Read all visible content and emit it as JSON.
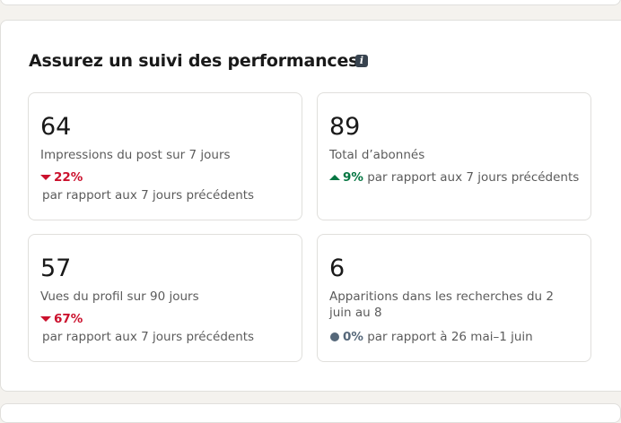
{
  "header": {
    "title": "Assurez un suivi des performances"
  },
  "cards": [
    {
      "value": "64",
      "label": "Impressions du post sur 7 jours",
      "change": "22%",
      "trend": "down",
      "color": "#cb112d",
      "comparison": "par rapport aux 7 jours précédents"
    },
    {
      "value": "89",
      "label": "Total d’abonnés",
      "change": "9%",
      "trend": "up",
      "color": "#057642",
      "comparison": "par rapport aux 7 jours précédents"
    },
    {
      "value": "57",
      "label": "Vues du profil sur 90 jours",
      "change": "67%",
      "trend": "down",
      "color": "#cb112d",
      "comparison": "par rapport aux 7 jours précédents"
    },
    {
      "value": "6",
      "label": "Apparitions dans les recherches du 2 juin au 8",
      "change": "0%",
      "trend": "neutral",
      "color": "#56687a",
      "comparison": "par rapport à 26 mai–1 juin"
    }
  ]
}
